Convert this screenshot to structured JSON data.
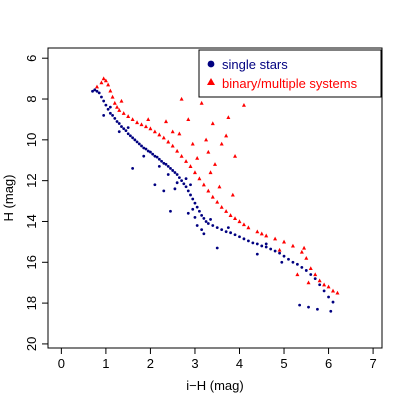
{
  "chart_data": {
    "type": "scatter",
    "title": "",
    "xlabel": "i−H (mag)",
    "ylabel": "H (mag)",
    "xlim": [
      -0.3,
      7.2
    ],
    "ylim": [
      20.2,
      5.5
    ],
    "y_inverted": true,
    "x_ticks": [
      "0",
      "1",
      "2",
      "3",
      "4",
      "5",
      "6",
      "7"
    ],
    "y_ticks": [
      "6",
      "8",
      "10",
      "12",
      "14",
      "16",
      "18",
      "20"
    ],
    "legend_position": "top-right",
    "grid": false,
    "series": [
      {
        "name": "single stars",
        "marker": "circle",
        "color": "#000080",
        "points": [
          [
            0.7,
            7.62
          ],
          [
            0.75,
            7.55
          ],
          [
            0.8,
            7.62
          ],
          [
            0.85,
            7.7
          ],
          [
            0.9,
            7.9
          ],
          [
            0.95,
            8.1
          ],
          [
            1.0,
            8.3
          ],
          [
            1.05,
            8.5
          ],
          [
            1.1,
            8.7
          ],
          [
            1.15,
            8.8
          ],
          [
            1.2,
            8.95
          ],
          [
            1.25,
            9.1
          ],
          [
            1.3,
            9.2
          ],
          [
            1.35,
            9.35
          ],
          [
            1.4,
            9.45
          ],
          [
            1.45,
            9.55
          ],
          [
            1.5,
            9.7
          ],
          [
            1.55,
            9.8
          ],
          [
            1.6,
            9.9
          ],
          [
            1.65,
            10.0
          ],
          [
            1.7,
            10.1
          ],
          [
            1.75,
            10.2
          ],
          [
            1.8,
            10.3
          ],
          [
            1.85,
            10.4
          ],
          [
            1.9,
            10.45
          ],
          [
            1.95,
            10.55
          ],
          [
            2.0,
            10.6
          ],
          [
            2.05,
            10.7
          ],
          [
            2.1,
            10.8
          ],
          [
            2.15,
            10.85
          ],
          [
            2.2,
            10.95
          ],
          [
            2.25,
            11.05
          ],
          [
            2.3,
            11.15
          ],
          [
            2.35,
            11.2
          ],
          [
            2.4,
            11.3
          ],
          [
            2.45,
            11.4
          ],
          [
            2.5,
            11.5
          ],
          [
            2.55,
            11.6
          ],
          [
            2.6,
            11.7
          ],
          [
            2.65,
            11.85
          ],
          [
            2.7,
            12.0
          ],
          [
            2.75,
            12.15
          ],
          [
            2.8,
            12.3
          ],
          [
            2.85,
            12.5
          ],
          [
            2.9,
            12.7
          ],
          [
            2.95,
            12.9
          ],
          [
            3.0,
            13.1
          ],
          [
            3.05,
            13.3
          ],
          [
            3.1,
            13.5
          ],
          [
            3.15,
            13.7
          ],
          [
            3.2,
            13.85
          ],
          [
            3.25,
            14.0
          ],
          [
            3.3,
            14.1
          ],
          [
            3.4,
            14.2
          ],
          [
            3.5,
            14.3
          ],
          [
            3.6,
            14.4
          ],
          [
            3.7,
            14.5
          ],
          [
            3.8,
            14.55
          ],
          [
            3.9,
            14.65
          ],
          [
            4.0,
            14.75
          ],
          [
            4.1,
            14.85
          ],
          [
            4.2,
            14.95
          ],
          [
            4.3,
            15.05
          ],
          [
            4.4,
            15.1
          ],
          [
            4.5,
            15.2
          ],
          [
            4.6,
            15.25
          ],
          [
            4.7,
            15.35
          ],
          [
            4.8,
            15.45
          ],
          [
            4.9,
            15.55
          ],
          [
            5.0,
            15.7
          ],
          [
            5.1,
            15.85
          ],
          [
            5.2,
            16.0
          ],
          [
            5.3,
            16.1
          ],
          [
            5.4,
            16.25
          ],
          [
            5.5,
            16.4
          ],
          [
            5.6,
            16.6
          ],
          [
            5.7,
            16.8
          ],
          [
            5.8,
            17.1
          ],
          [
            5.9,
            17.4
          ],
          [
            6.0,
            17.7
          ],
          [
            6.1,
            17.95
          ],
          [
            5.35,
            18.1
          ],
          [
            5.55,
            18.2
          ],
          [
            5.75,
            18.3
          ],
          [
            6.05,
            18.4
          ],
          [
            4.95,
            16.0
          ],
          [
            4.4,
            15.6
          ],
          [
            2.3,
            12.5
          ],
          [
            2.1,
            12.2
          ],
          [
            2.55,
            12.4
          ],
          [
            2.45,
            13.5
          ],
          [
            1.6,
            11.4
          ],
          [
            3.5,
            15.3
          ],
          [
            2.85,
            13.6
          ],
          [
            3.05,
            14.2
          ],
          [
            3.2,
            14.6
          ],
          [
            3.35,
            13.9
          ],
          [
            2.95,
            13.4
          ],
          [
            3.0,
            13.8
          ],
          [
            3.15,
            14.4
          ],
          [
            2.9,
            12.2
          ],
          [
            2.8,
            11.9
          ],
          [
            1.1,
            8.4
          ],
          [
            0.95,
            8.8
          ],
          [
            1.3,
            9.6
          ],
          [
            1.5,
            9.4
          ],
          [
            1.85,
            10.8
          ],
          [
            2.2,
            11.3
          ],
          [
            2.4,
            11.7
          ],
          [
            2.6,
            12.1
          ],
          [
            4.6,
            15.1
          ],
          [
            3.75,
            14.3
          ]
        ]
      },
      {
        "name": "binary/multiple systems",
        "marker": "triangle",
        "color": "#ff0000",
        "points": [
          [
            0.8,
            7.4
          ],
          [
            0.9,
            7.2
          ],
          [
            0.95,
            7.0
          ],
          [
            1.0,
            7.1
          ],
          [
            1.05,
            7.3
          ],
          [
            1.1,
            7.6
          ],
          [
            1.15,
            7.9
          ],
          [
            1.2,
            8.2
          ],
          [
            1.25,
            8.4
          ],
          [
            1.3,
            8.55
          ],
          [
            1.4,
            8.7
          ],
          [
            1.5,
            8.85
          ],
          [
            1.6,
            9.0
          ],
          [
            1.7,
            9.15
          ],
          [
            1.8,
            9.25
          ],
          [
            1.9,
            9.35
          ],
          [
            2.0,
            9.45
          ],
          [
            2.1,
            9.6
          ],
          [
            2.2,
            9.75
          ],
          [
            2.3,
            9.9
          ],
          [
            2.4,
            10.1
          ],
          [
            2.5,
            10.3
          ],
          [
            2.6,
            10.55
          ],
          [
            2.7,
            10.8
          ],
          [
            2.8,
            11.05
          ],
          [
            2.9,
            11.3
          ],
          [
            3.0,
            11.6
          ],
          [
            3.1,
            11.9
          ],
          [
            3.2,
            12.2
          ],
          [
            3.3,
            12.5
          ],
          [
            3.4,
            12.8
          ],
          [
            3.5,
            13.05
          ],
          [
            3.6,
            13.3
          ],
          [
            3.7,
            13.5
          ],
          [
            3.8,
            13.7
          ],
          [
            3.9,
            13.85
          ],
          [
            4.0,
            14.0
          ],
          [
            4.1,
            14.15
          ],
          [
            4.2,
            14.3
          ],
          [
            4.4,
            14.5
          ],
          [
            4.6,
            14.7
          ],
          [
            4.8,
            14.85
          ],
          [
            5.0,
            15.0
          ],
          [
            5.2,
            15.2
          ],
          [
            5.4,
            15.5
          ],
          [
            5.5,
            15.8
          ],
          [
            5.6,
            16.3
          ],
          [
            5.7,
            16.6
          ],
          [
            5.8,
            16.9
          ],
          [
            5.9,
            17.1
          ],
          [
            6.0,
            17.2
          ],
          [
            6.2,
            17.5
          ],
          [
            6.1,
            17.4
          ],
          [
            3.4,
            9.2
          ],
          [
            3.6,
            10.2
          ],
          [
            3.45,
            11.2
          ],
          [
            3.75,
            8.9
          ],
          [
            2.7,
            8.0
          ],
          [
            3.15,
            8.2
          ],
          [
            4.1,
            8.3
          ],
          [
            3.9,
            10.8
          ],
          [
            3.3,
            10.6
          ],
          [
            3.7,
            9.8
          ],
          [
            2.85,
            9.0
          ],
          [
            1.35,
            8.1
          ],
          [
            2.35,
            9.1
          ],
          [
            2.95,
            10.2
          ],
          [
            3.25,
            10.0
          ],
          [
            3.55,
            12.3
          ],
          [
            5.3,
            16.6
          ],
          [
            5.55,
            17.0
          ],
          [
            4.9,
            15.4
          ],
          [
            4.5,
            14.6
          ],
          [
            3.85,
            12.7
          ],
          [
            2.5,
            9.6
          ],
          [
            1.95,
            9.0
          ],
          [
            2.65,
            9.7
          ],
          [
            3.05,
            10.9
          ],
          [
            3.35,
            11.6
          ],
          [
            5.45,
            15.3
          ]
        ]
      }
    ]
  }
}
